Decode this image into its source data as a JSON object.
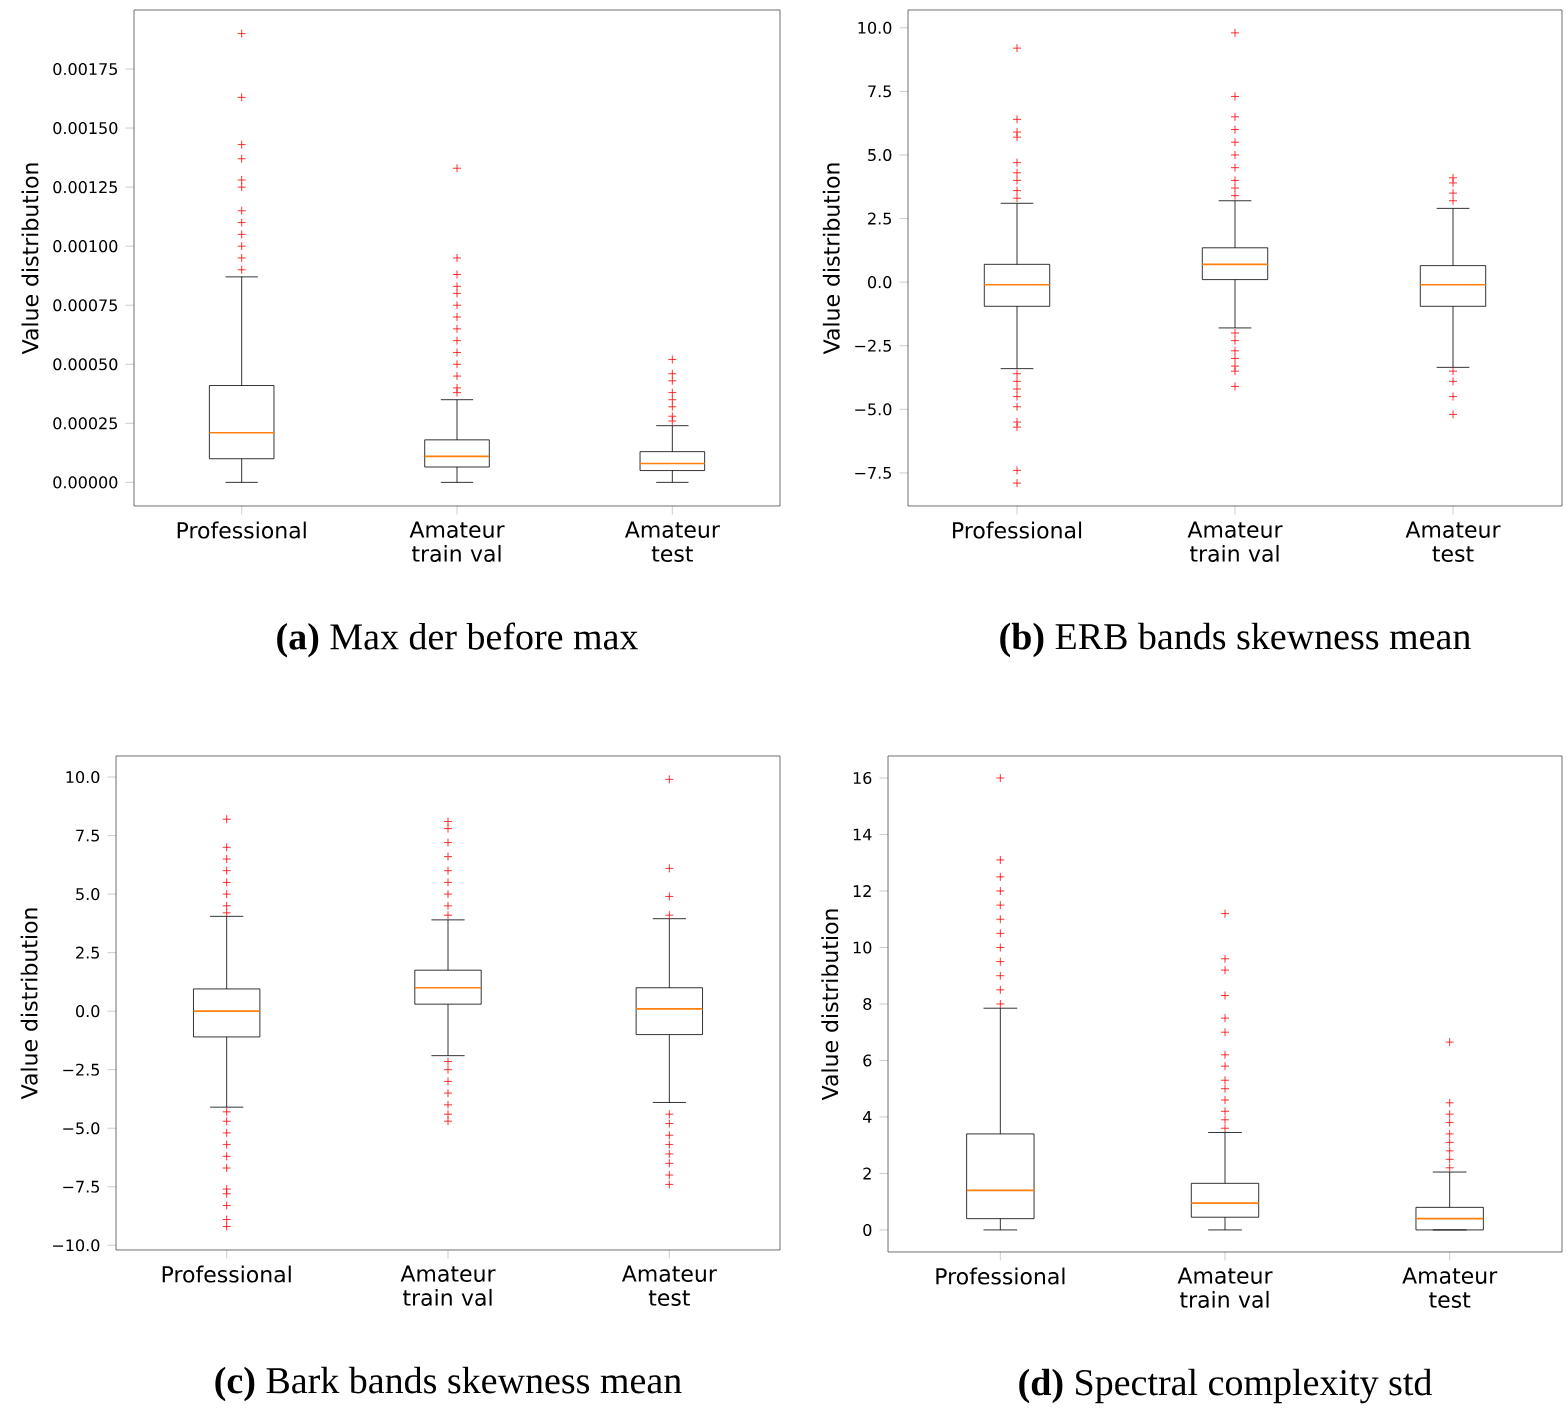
{
  "chart_data": [
    {
      "type": "box",
      "title": "**(a)** Max der before max",
      "ylabel": "Value distribution",
      "categories": [
        "Professional",
        "Amateur train val",
        "Amateur test"
      ],
      "boxes": [
        {
          "low": 0,
          "q1": 0.0001,
          "median": 0.00021,
          "q3": 0.00041,
          "high": 0.00087,
          "outliers": [
            0.0009,
            0.00095,
            0.001,
            0.00105,
            0.0011,
            0.00115,
            0.00125,
            0.00128,
            0.00137,
            0.00143,
            0.00163,
            0.0019
          ]
        },
        {
          "low": 0,
          "q1": 6.5e-05,
          "median": 0.00011,
          "q3": 0.00018,
          "high": 0.00035,
          "outliers": [
            0.00038,
            0.0004,
            0.00045,
            0.0005,
            0.00055,
            0.0006,
            0.00065,
            0.0007,
            0.00075,
            0.0008,
            0.00083,
            0.00088,
            0.00095,
            0.00133
          ]
        },
        {
          "low": 0,
          "q1": 5e-05,
          "median": 8e-05,
          "q3": 0.00013,
          "high": 0.00024,
          "outliers": [
            0.00026,
            0.00028,
            0.00032,
            0.00035,
            0.00038,
            0.00043,
            0.00046,
            0.00052
          ]
        }
      ],
      "ylim": [
        -0.0001,
        0.002
      ],
      "yticks": [
        {
          "value": 0,
          "label": "0.00000"
        },
        {
          "value": 0.00025,
          "label": "0.00025"
        },
        {
          "value": 0.0005,
          "label": "0.00050"
        },
        {
          "value": 0.00075,
          "label": "0.00075"
        },
        {
          "value": 0.001,
          "label": "0.00100"
        },
        {
          "value": 0.00125,
          "label": "0.00125"
        },
        {
          "value": 0.0015,
          "label": "0.00150"
        },
        {
          "value": 0.00175,
          "label": "0.00175"
        }
      ]
    },
    {
      "type": "box",
      "title": "**(b)** ERB bands skewness mean",
      "ylabel": "Value distribution",
      "categories": [
        "Professional",
        "Amateur train val",
        "Amateur test"
      ],
      "boxes": [
        {
          "low": -3.4,
          "q1": -0.95,
          "median": -0.1,
          "q3": 0.7,
          "high": 3.1,
          "outliers": [
            3.3,
            3.6,
            4.0,
            4.3,
            4.7,
            5.7,
            5.9,
            6.4,
            9.2,
            -3.6,
            -3.9,
            -4.2,
            -4.5,
            -4.9,
            -5.5,
            -5.7,
            -7.4,
            -7.9
          ]
        },
        {
          "low": -1.8,
          "q1": 0.1,
          "median": 0.7,
          "q3": 1.35,
          "high": 3.2,
          "outliers": [
            3.4,
            3.7,
            4.0,
            4.5,
            5.0,
            5.5,
            6.0,
            6.5,
            7.3,
            9.8,
            -2.0,
            -2.3,
            -2.7,
            -3.0,
            -3.3,
            -3.5,
            -4.1
          ]
        },
        {
          "low": -3.35,
          "q1": -0.95,
          "median": -0.1,
          "q3": 0.65,
          "high": 2.9,
          "outliers": [
            3.2,
            3.5,
            3.9,
            4.1,
            -3.5,
            -3.9,
            -4.5,
            -5.2
          ]
        }
      ],
      "ylim": [
        -8.8,
        10.7
      ],
      "yticks": [
        {
          "value": -7.5,
          "label": "−7.5"
        },
        {
          "value": -5,
          "label": "−5.0"
        },
        {
          "value": -2.5,
          "label": "−2.5"
        },
        {
          "value": 0,
          "label": "0.0"
        },
        {
          "value": 2.5,
          "label": "2.5"
        },
        {
          "value": 5,
          "label": "5.0"
        },
        {
          "value": 7.5,
          "label": "7.5"
        },
        {
          "value": 10,
          "label": "10.0"
        }
      ]
    },
    {
      "type": "box",
      "title": "**(c)** Bark bands skewness mean",
      "ylabel": "Value distribution",
      "categories": [
        "Professional",
        "Amateur train val",
        "Amateur test"
      ],
      "boxes": [
        {
          "low": -4.1,
          "q1": -1.1,
          "median": 0.0,
          "q3": 0.95,
          "high": 4.05,
          "outliers": [
            4.2,
            4.5,
            5.0,
            5.5,
            6.0,
            6.5,
            7.0,
            8.2,
            -4.3,
            -4.7,
            -5.2,
            -5.7,
            -6.2,
            -6.7,
            -7.6,
            -7.8,
            -8.3,
            -8.9,
            -9.2
          ]
        },
        {
          "low": -1.9,
          "q1": 0.3,
          "median": 1.0,
          "q3": 1.75,
          "high": 3.9,
          "outliers": [
            4.1,
            4.5,
            5.0,
            5.5,
            6.0,
            6.6,
            7.2,
            7.8,
            8.1,
            -2.15,
            -2.5,
            -3.0,
            -3.5,
            -4.0,
            -4.4,
            -4.7
          ]
        },
        {
          "low": -3.9,
          "q1": -1.0,
          "median": 0.1,
          "q3": 1.0,
          "high": 3.95,
          "outliers": [
            4.1,
            4.9,
            6.1,
            9.9,
            -4.4,
            -4.8,
            -5.3,
            -5.7,
            -6.1,
            -6.5,
            -7.0,
            -7.4
          ]
        }
      ],
      "ylim": [
        -10.2,
        10.9
      ],
      "yticks": [
        {
          "value": -10,
          "label": "−10.0"
        },
        {
          "value": -7.5,
          "label": "−7.5"
        },
        {
          "value": -5,
          "label": "−5.0"
        },
        {
          "value": -2.5,
          "label": "−2.5"
        },
        {
          "value": 0,
          "label": "0.0"
        },
        {
          "value": 2.5,
          "label": "2.5"
        },
        {
          "value": 5,
          "label": "5.0"
        },
        {
          "value": 7.5,
          "label": "7.5"
        },
        {
          "value": 10,
          "label": "10.0"
        }
      ]
    },
    {
      "type": "box",
      "title": "**(d)** Spectral complexity std",
      "ylabel": "Value distribution",
      "categories": [
        "Professional",
        "Amateur train val",
        "Amateur test"
      ],
      "boxes": [
        {
          "low": 0,
          "q1": 0.4,
          "median": 1.4,
          "q3": 3.4,
          "high": 7.85,
          "outliers": [
            8.0,
            8.5,
            9.0,
            9.5,
            10.0,
            10.5,
            11.0,
            11.5,
            12.0,
            12.5,
            13.1,
            16.0
          ]
        },
        {
          "low": 0,
          "q1": 0.45,
          "median": 0.95,
          "q3": 1.65,
          "high": 3.45,
          "outliers": [
            3.6,
            3.9,
            4.2,
            4.6,
            5.0,
            5.3,
            5.8,
            6.2,
            7.0,
            7.5,
            8.3,
            9.2,
            9.6,
            11.2
          ]
        },
        {
          "low": 0,
          "q1": 0.0,
          "median": 0.4,
          "q3": 0.8,
          "high": 2.05,
          "outliers": [
            2.2,
            2.5,
            2.8,
            3.1,
            3.4,
            3.8,
            4.1,
            4.5,
            6.65
          ]
        }
      ],
      "ylim": [
        -0.78,
        16.78
      ],
      "yticks": [
        0,
        2,
        4,
        6,
        8,
        10,
        12,
        14,
        16
      ]
    }
  ]
}
